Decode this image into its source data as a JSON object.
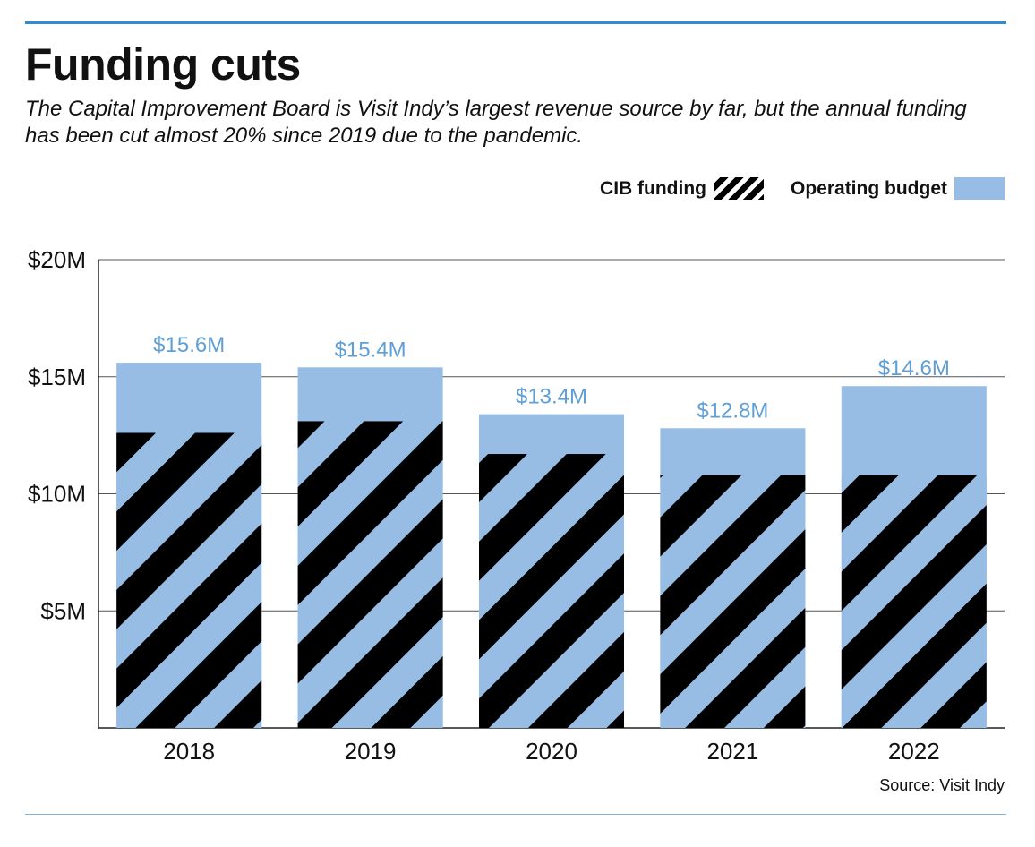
{
  "header": {
    "title": "Funding cuts",
    "subtitle": "The Capital Improvement Board is Visit Indy’s largest revenue source by far, but the annual funding has been cut almost 20% since 2019 due to the pandemic."
  },
  "legend": {
    "cib_label": "CIB funding",
    "budget_label": "Operating budget"
  },
  "source": "Source: Visit Indy",
  "colors": {
    "budget_blue": "#97bde5",
    "hatch_black": "#000000",
    "label_blue": "#5f9fd6",
    "rule_blue": "#2f8ccf"
  },
  "chart_data": {
    "type": "bar",
    "categories": [
      "2018",
      "2019",
      "2020",
      "2021",
      "2022"
    ],
    "series": [
      {
        "name": "CIB funding",
        "values": [
          12.6,
          13.1,
          11.7,
          10.8,
          10.8
        ],
        "pattern": "diagonal-hatch"
      },
      {
        "name": "Operating budget",
        "values": [
          15.6,
          15.4,
          13.4,
          12.8,
          14.6
        ]
      }
    ],
    "data_labels": [
      "$15.6M",
      "$15.4M",
      "$13.4M",
      "$12.8M",
      "$14.6M"
    ],
    "yticks": [
      {
        "value": 20,
        "label": "$20M"
      },
      {
        "value": 15,
        "label": "$15M"
      },
      {
        "value": 10,
        "label": "$10M"
      },
      {
        "value": 5,
        "label": "$5M"
      }
    ],
    "ylim": [
      0,
      20
    ],
    "grid": true,
    "legend_position": "top-right",
    "overlay": true
  }
}
